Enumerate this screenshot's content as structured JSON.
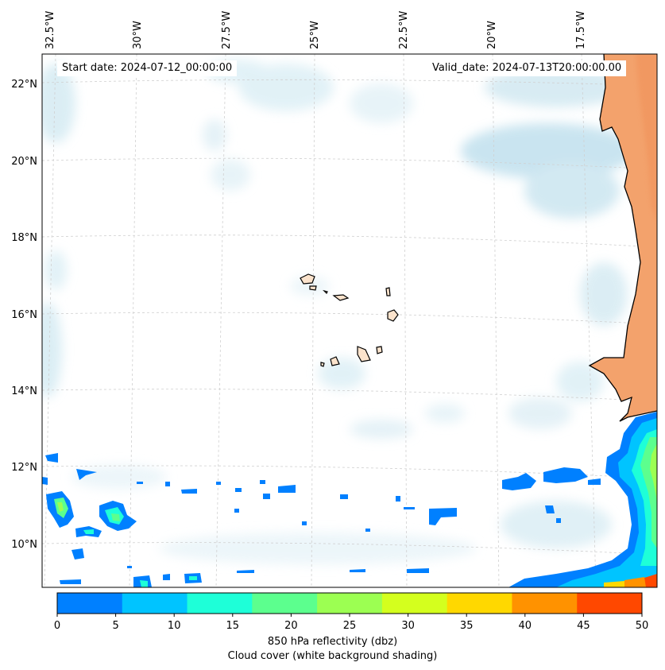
{
  "map": {
    "longitude_labels": [
      "32.5°W",
      "30°W",
      "27.5°W",
      "25°W",
      "22.5°W",
      "20°W",
      "17.5°W"
    ],
    "latitude_labels": [
      "22°N",
      "20°N",
      "18°N",
      "16°N",
      "14°N",
      "12°N",
      "10°N"
    ],
    "start_date": "Start date: 2024-07-12_00:00:00",
    "valid_date": "Valid_date: 2024-07-13T20:00:00.00",
    "colors": {
      "land": "#fbe3cc",
      "land_hot": "#f3a26c",
      "cloud": "#cfe8f1",
      "coast": "#000000",
      "grid": "#d0d0d0"
    }
  },
  "colorbar": {
    "ticks": [
      "0",
      "5",
      "10",
      "15",
      "20",
      "25",
      "30",
      "35",
      "40",
      "45",
      "50"
    ],
    "colors": [
      "#0080ff",
      "#00c4ff",
      "#1effd8",
      "#5cff8e",
      "#9cff52",
      "#d4ff1e",
      "#ffd800",
      "#ff9200",
      "#ff4800"
    ],
    "label_line1": "850 hPa reflectivity (dbz)",
    "label_line2": "Cloud cover (white background shading)"
  }
}
